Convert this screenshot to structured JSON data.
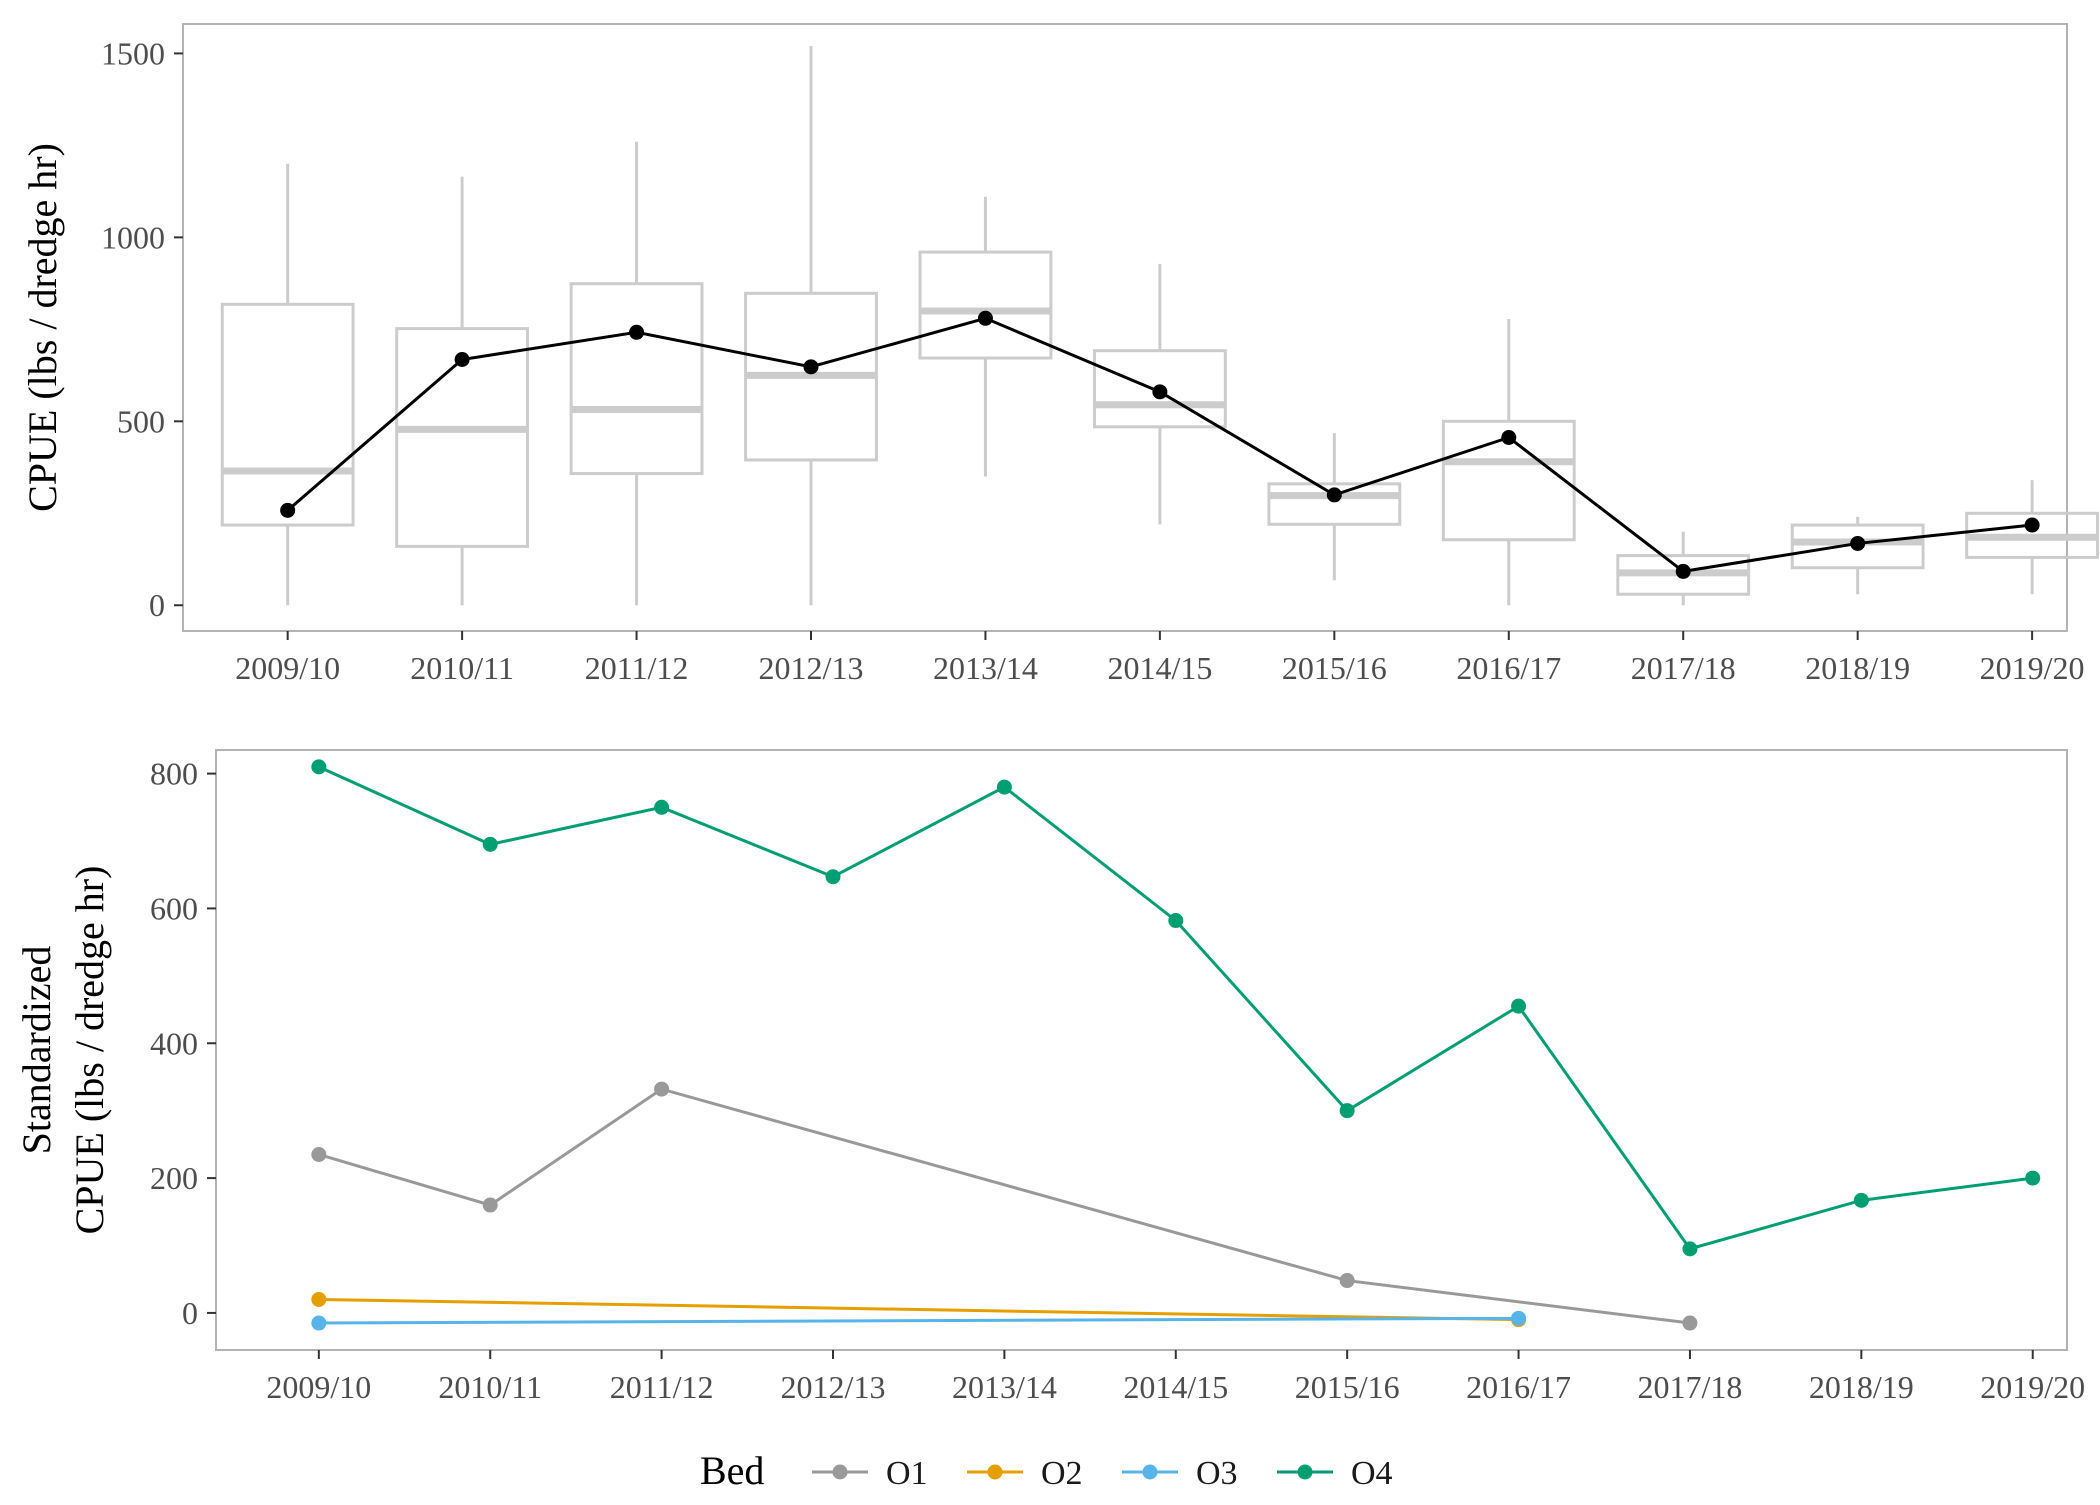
{
  "chart_data": [
    {
      "type": "box",
      "categories": [
        "2009/10",
        "2010/11",
        "2011/12",
        "2012/13",
        "2013/14",
        "2014/15",
        "2015/16",
        "2016/17",
        "2017/18",
        "2018/19",
        "2019/20"
      ],
      "ylabel": "CPUE (lbs / dredge hr)",
      "ylim": [
        -70,
        1580
      ],
      "yticks": [
        0,
        500,
        1000,
        1500
      ],
      "boxes": [
        {
          "min": 0,
          "q1": 218,
          "median": 365,
          "q3": 818,
          "max": 1200
        },
        {
          "min": 0,
          "q1": 160,
          "median": 478,
          "q3": 752,
          "max": 1165
        },
        {
          "min": 0,
          "q1": 358,
          "median": 532,
          "q3": 874,
          "max": 1260
        },
        {
          "min": 0,
          "q1": 395,
          "median": 625,
          "q3": 848,
          "max": 1520
        },
        {
          "min": 350,
          "q1": 672,
          "median": 800,
          "q3": 960,
          "max": 1110
        },
        {
          "min": 220,
          "q1": 485,
          "median": 545,
          "q3": 692,
          "max": 928
        },
        {
          "min": 68,
          "q1": 220,
          "median": 298,
          "q3": 330,
          "max": 468
        },
        {
          "min": 0,
          "q1": 178,
          "median": 390,
          "q3": 500,
          "max": 778
        },
        {
          "min": 0,
          "q1": 30,
          "median": 88,
          "q3": 135,
          "max": 200
        },
        {
          "min": 30,
          "q1": 102,
          "median": 172,
          "q3": 218,
          "max": 240
        },
        {
          "min": 30,
          "q1": 130,
          "median": 185,
          "q3": 250,
          "max": 340
        }
      ],
      "line": {
        "values": [
          258,
          668,
          742,
          648,
          780,
          580,
          300,
          456,
          92,
          168,
          218
        ],
        "color": "#000000"
      },
      "grid": false
    },
    {
      "type": "line",
      "categories": [
        "2009/10",
        "2010/11",
        "2011/12",
        "2012/13",
        "2013/14",
        "2014/15",
        "2015/16",
        "2016/17",
        "2017/18",
        "2018/19",
        "2019/20"
      ],
      "ylabel": [
        "Standardized",
        "CPUE (lbs / dredge hr)"
      ],
      "ylim": [
        -55,
        835
      ],
      "yticks": [
        0,
        200,
        400,
        600,
        800
      ],
      "series": [
        {
          "name": "O1",
          "color": "#999999",
          "points": [
            [
              0,
              235
            ],
            [
              1,
              160
            ],
            [
              2,
              332
            ],
            [
              6,
              48
            ],
            [
              8,
              -15
            ]
          ]
        },
        {
          "name": "O2",
          "color": "#E69F00",
          "points": [
            [
              0,
              20
            ],
            [
              7,
              -10
            ]
          ]
        },
        {
          "name": "O3",
          "color": "#56B4E9",
          "points": [
            [
              0,
              -15
            ],
            [
              7,
              -8
            ]
          ]
        },
        {
          "name": "O4",
          "color": "#009E73",
          "points": [
            [
              0,
              810
            ],
            [
              1,
              695
            ],
            [
              2,
              750
            ],
            [
              3,
              647
            ],
            [
              4,
              780
            ],
            [
              5,
              582
            ],
            [
              6,
              300
            ],
            [
              7,
              455
            ],
            [
              8,
              95
            ],
            [
              9,
              167
            ],
            [
              10,
              200
            ]
          ]
        }
      ],
      "legend": {
        "title": "Bed",
        "position": "bottom"
      },
      "grid": false
    }
  ]
}
